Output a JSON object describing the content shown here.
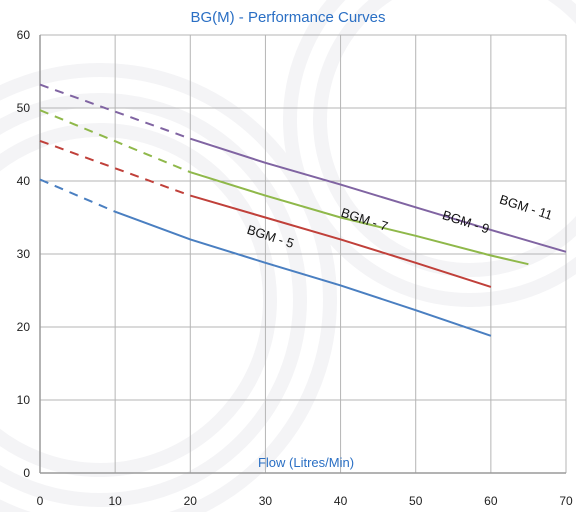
{
  "chart_data": {
    "type": "line",
    "title": "BG(M) - Performance Curves",
    "xlabel": "Flow (Litres/Min)",
    "ylabel": "",
    "xlim": [
      0,
      70
    ],
    "ylim": [
      0,
      60
    ],
    "xticks": [
      "0",
      "10",
      "20",
      "30",
      "40",
      "50",
      "60",
      "70"
    ],
    "yticks": [
      "0",
      "10",
      "20",
      "30",
      "40",
      "50",
      "60"
    ],
    "grid": true,
    "colors": {
      "title": "#2a6fc4",
      "xlabel": "#2a6fc4",
      "grid": "#b5b5b5",
      "axis": "#9a9a9a"
    },
    "series": [
      {
        "name": "BGM - 5",
        "color": "#4a7fc1",
        "dashed": [
          [
            0,
            40.2
          ],
          [
            10,
            35.8
          ]
        ],
        "solid": [
          [
            10,
            35.8
          ],
          [
            20,
            32.0
          ],
          [
            30,
            28.8
          ],
          [
            40,
            25.7
          ],
          [
            50,
            22.3
          ],
          [
            60,
            18.8
          ]
        ]
      },
      {
        "name": "BGM - 7",
        "color": "#c0403a",
        "dashed": [
          [
            0,
            45.5
          ],
          [
            20,
            38.0
          ]
        ],
        "solid": [
          [
            20,
            38.0
          ],
          [
            30,
            35.0
          ],
          [
            40,
            32.0
          ],
          [
            50,
            28.8
          ],
          [
            60,
            25.5
          ]
        ]
      },
      {
        "name": "BGM - 9",
        "color": "#8fb84a",
        "dashed": [
          [
            0,
            49.7
          ],
          [
            20,
            41.2
          ]
        ],
        "solid": [
          [
            20,
            41.2
          ],
          [
            30,
            38.0
          ],
          [
            40,
            35.0
          ],
          [
            50,
            32.5
          ],
          [
            60,
            29.8
          ],
          [
            65,
            28.6
          ]
        ]
      },
      {
        "name": "BGM - 11",
        "color": "#8064a2",
        "dashed": [
          [
            0,
            53.2
          ],
          [
            20,
            45.8
          ]
        ],
        "solid": [
          [
            20,
            45.8
          ],
          [
            30,
            42.5
          ],
          [
            40,
            39.5
          ],
          [
            50,
            36.4
          ],
          [
            60,
            33.3
          ],
          [
            70,
            30.3
          ]
        ]
      }
    ]
  }
}
